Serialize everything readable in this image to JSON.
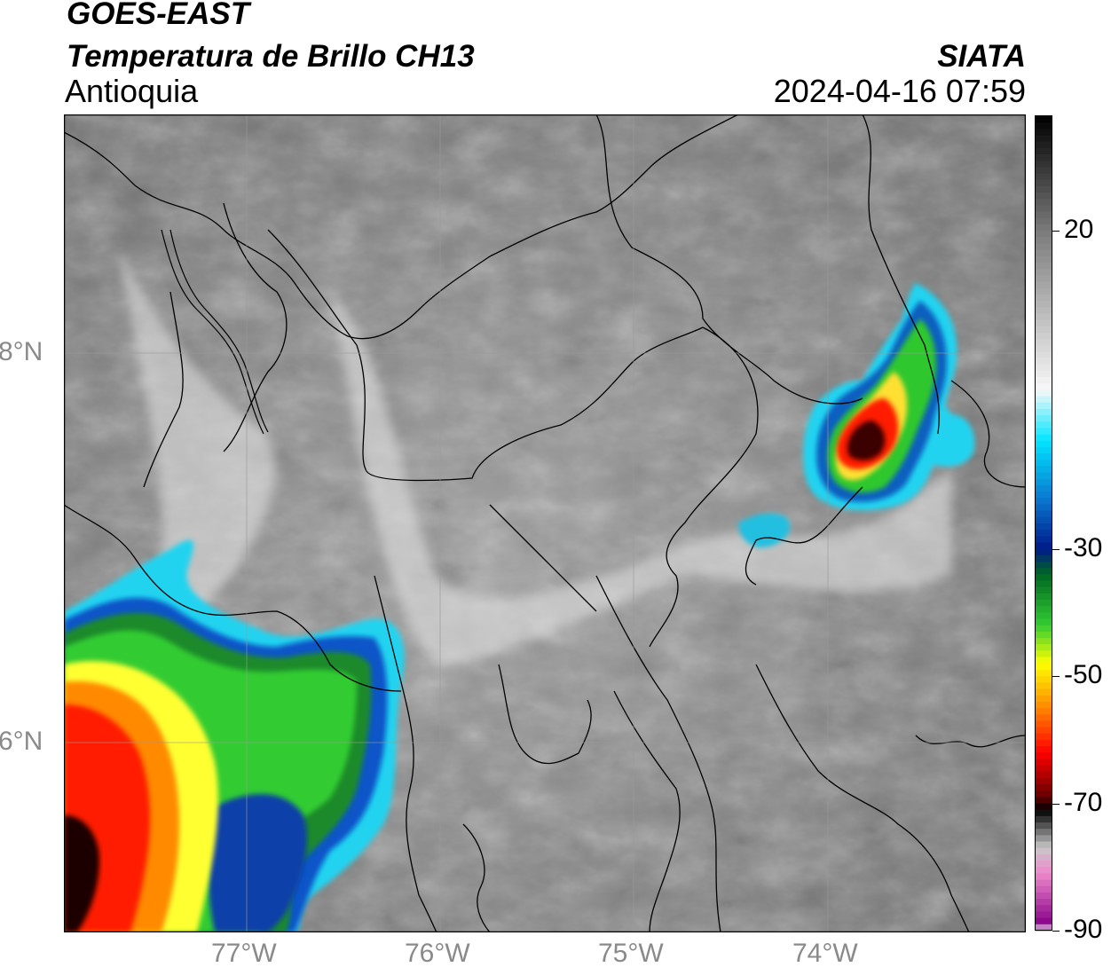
{
  "header": {
    "satellite": "GOES-EAST",
    "product": "Temperatura de Brillo CH13",
    "region": "Antioquia",
    "agency": "SIATA",
    "timestamp": "2024-04-16 07:59"
  },
  "map": {
    "lat_labels": [
      "8°N",
      "6°N"
    ],
    "lon_labels": [
      "77°W",
      "76°W",
      "75°W",
      "74°W"
    ],
    "extent": {
      "lon_min": -77.95,
      "lon_max": -73.0,
      "lat_min": 5.05,
      "lat_max": 9.25
    },
    "colors": {
      "background_gray": "#8f8f8f",
      "border_line": "#000000",
      "grid_line": "#9a9a9a"
    }
  },
  "colorbar": {
    "ticks": [
      {
        "label": "20",
        "value": 20
      },
      {
        "label": "-30",
        "value": -30
      },
      {
        "label": "-50",
        "value": -50
      },
      {
        "label": "-70",
        "value": -70
      },
      {
        "label": "-90",
        "value": -90
      }
    ],
    "range": [
      -90,
      38
    ],
    "stops": [
      {
        "value": 38,
        "color": "#000000"
      },
      {
        "value": 20,
        "color": "#7a7a7a"
      },
      {
        "value": -5,
        "color": "#f8f8f8"
      },
      {
        "value": -13,
        "color": "#00e5ff"
      },
      {
        "value": -22,
        "color": "#0a7ad1"
      },
      {
        "value": -30,
        "color": "#001a8a"
      },
      {
        "value": -34,
        "color": "#006622"
      },
      {
        "value": -42,
        "color": "#33cc33"
      },
      {
        "value": -48,
        "color": "#ffff00"
      },
      {
        "value": -55,
        "color": "#ff8800"
      },
      {
        "value": -62,
        "color": "#ff0000"
      },
      {
        "value": -69,
        "color": "#660000"
      },
      {
        "value": -71,
        "color": "#000000"
      },
      {
        "value": -77,
        "color": "#c8c8c8"
      },
      {
        "value": -81,
        "color": "#ee88cc"
      },
      {
        "value": -89,
        "color": "#880088"
      },
      {
        "value": -90,
        "color": "#ffffff"
      }
    ]
  }
}
